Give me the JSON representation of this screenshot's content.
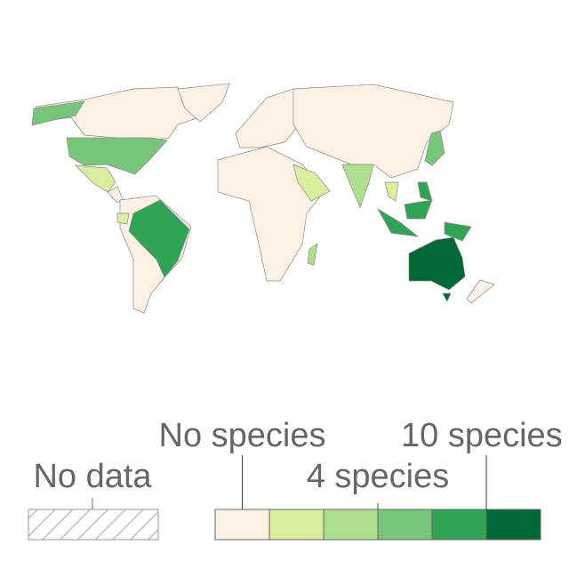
{
  "legend": {
    "no_data": "No data",
    "bins": [
      {
        "color": "#fdf1e6"
      },
      {
        "color": "#d9ef9f"
      },
      {
        "color": "#addf8e"
      },
      {
        "color": "#78c679"
      },
      {
        "color": "#31a354"
      },
      {
        "color": "#006837"
      }
    ],
    "labels": [
      "No species",
      "4 species",
      "10 species"
    ]
  }
}
